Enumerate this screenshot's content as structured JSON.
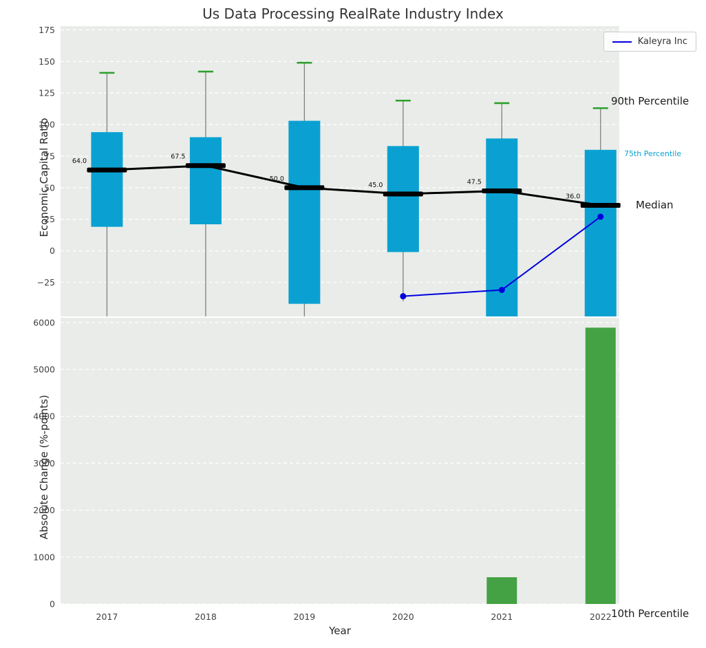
{
  "title": "Us Data Processing RealRate Industry Index",
  "legend": {
    "label": "Kaleyra Inc"
  },
  "labels": {
    "ylabel_top": "Economic Capital Ratio",
    "ylabel_bottom": "Absolute Change (%-points)",
    "xlabel": "Year",
    "p90": "90th Percentile",
    "p75": "75th Percentile",
    "median": "Median",
    "p10": "10th Percentile"
  },
  "colors": {
    "box": "#0aa1d2",
    "cap": "#2ca02c",
    "whisker": "#7f7f7f",
    "median": "#000000",
    "kaleyra": "#0000dd",
    "bar": "#44a244",
    "panel_bg": "#e9ece9",
    "grid": "#ffffff",
    "tick": "#404040"
  },
  "chart_data": {
    "type": "boxplot+line+bar",
    "title": "Us Data Processing RealRate Industry Index",
    "years": [
      "2017",
      "2018",
      "2019",
      "2020",
      "2021",
      "2022"
    ],
    "top_panel": {
      "ylabel": "Economic Capital Ratio",
      "ylim": [
        -52,
        178
      ],
      "yticks": [
        175,
        150,
        125,
        100,
        75,
        50,
        25,
        0,
        -25
      ],
      "grid": "dashed-white",
      "boxes": [
        {
          "year": 2017,
          "p90": 141,
          "q75": 94,
          "median": 64.0,
          "q25": 19,
          "whisker_low": -52,
          "label": "64.0"
        },
        {
          "year": 2018,
          "p90": 142,
          "q75": 90,
          "median": 67.5,
          "q25": 21,
          "whisker_low": -52,
          "label": "67.5"
        },
        {
          "year": 2019,
          "p90": 149,
          "q75": 103,
          "median": 50.0,
          "q25": -42,
          "whisker_low": -52,
          "label": "50.0"
        },
        {
          "year": 2020,
          "p90": 119,
          "q75": 83,
          "median": 45.0,
          "q25": -1,
          "whisker_low": -40,
          "label": "45.0"
        },
        {
          "year": 2021,
          "p90": 117,
          "q75": 89,
          "median": 47.5,
          "q25": -60,
          "whisker_low": -60,
          "label": "47.5"
        },
        {
          "year": 2022,
          "p90": 113,
          "q75": 80,
          "median": 36.0,
          "q25": -60,
          "whisker_low": -60,
          "label": "36.0"
        }
      ],
      "series": [
        {
          "name": "Kaleyra Inc",
          "type": "line",
          "points": [
            {
              "year": 2020,
              "value": -36
            },
            {
              "year": 2021,
              "value": -31
            },
            {
              "year": 2022,
              "value": 27
            }
          ]
        }
      ],
      "annotations": [
        "90th Percentile",
        "75th Percentile",
        "Median",
        "10th Percentile"
      ]
    },
    "bottom_panel": {
      "type": "bar",
      "ylabel": "Absolute Change (%-points)",
      "xlabel": "Year",
      "ylim": [
        0,
        6100
      ],
      "yticks": [
        0,
        1000,
        2000,
        3000,
        4000,
        5000,
        6000
      ],
      "bars": [
        {
          "year": 2021,
          "value": 570
        },
        {
          "year": 2022,
          "value": 5890
        }
      ]
    }
  }
}
